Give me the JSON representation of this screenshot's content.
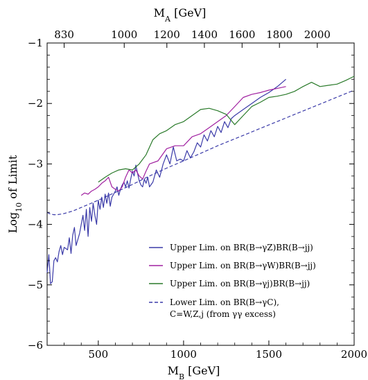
{
  "chart_data": {
    "type": "line",
    "xlabel": "M",
    "xlabel_sub": "B",
    "xlabel_unit": " [GeV]",
    "ylabel": "Log",
    "ylabel_sub": "10",
    "ylabel_rest": " of Limit",
    "top_xlabel": "M",
    "top_xlabel_sub": "A",
    "top_xlabel_unit": " [GeV]",
    "xlim": [
      200,
      2000
    ],
    "ylim": [
      -6,
      -1
    ],
    "x_ticks": [
      500,
      1000,
      1500,
      2000
    ],
    "x_tick_labels": [
      "500",
      "1000",
      "1500",
      "2000"
    ],
    "y_ticks": [
      -6,
      -5,
      -4,
      -3,
      -2,
      -1
    ],
    "y_tick_labels": [
      "−6",
      "−5",
      "−4",
      "−3",
      "−2",
      "−1"
    ],
    "top_ticks": [
      {
        "pos": 300,
        "label": "830"
      },
      {
        "pos": 652,
        "label": "1000"
      },
      {
        "pos": 902,
        "label": "1200"
      },
      {
        "pos": 1122,
        "label": "1400"
      },
      {
        "pos": 1343,
        "label": "1600"
      },
      {
        "pos": 1562,
        "label": "1800"
      },
      {
        "pos": 1784,
        "label": "2000"
      }
    ],
    "grid": false,
    "legend_position": "bottom-right",
    "series": [
      {
        "name": "Upper Lim. on BR(B→γZ)BR(B→jj)",
        "color": "#3a3aa8",
        "dash": false,
        "x": [
          200,
          210,
          220,
          230,
          240,
          250,
          260,
          270,
          280,
          290,
          300,
          310,
          320,
          330,
          340,
          350,
          360,
          370,
          380,
          390,
          400,
          410,
          420,
          430,
          440,
          450,
          460,
          470,
          480,
          490,
          500,
          510,
          520,
          530,
          540,
          550,
          560,
          570,
          580,
          590,
          600,
          610,
          620,
          630,
          640,
          650,
          660,
          670,
          680,
          690,
          700,
          710,
          720,
          730,
          740,
          750,
          760,
          770,
          780,
          790,
          800,
          820,
          840,
          860,
          880,
          900,
          920,
          940,
          960,
          980,
          1000,
          1020,
          1040,
          1060,
          1080,
          1100,
          1120,
          1140,
          1160,
          1180,
          1200,
          1220,
          1240,
          1260,
          1280,
          1300,
          1350,
          1400,
          1450,
          1500,
          1550,
          1600
        ],
        "y": [
          -4.8,
          -4.5,
          -4.98,
          -4.95,
          -4.6,
          -4.55,
          -4.62,
          -4.45,
          -4.35,
          -4.5,
          -4.38,
          -4.4,
          -4.42,
          -4.22,
          -4.48,
          -4.18,
          -4.05,
          -4.35,
          -4.25,
          -4.15,
          -4.0,
          -3.85,
          -4.1,
          -3.75,
          -4.2,
          -3.72,
          -3.95,
          -3.65,
          -3.85,
          -4.0,
          -3.6,
          -3.75,
          -3.55,
          -3.72,
          -3.5,
          -3.65,
          -3.48,
          -3.7,
          -3.55,
          -3.5,
          -3.45,
          -3.38,
          -3.52,
          -3.42,
          -3.35,
          -3.3,
          -3.38,
          -3.28,
          -3.4,
          -3.25,
          -3.12,
          -3.2,
          -3.02,
          -3.15,
          -3.28,
          -3.35,
          -3.38,
          -3.25,
          -3.32,
          -3.22,
          -3.38,
          -3.3,
          -3.1,
          -3.22,
          -3.0,
          -2.85,
          -3.0,
          -2.72,
          -2.95,
          -2.92,
          -2.95,
          -2.78,
          -2.9,
          -2.8,
          -2.65,
          -2.72,
          -2.52,
          -2.62,
          -2.45,
          -2.55,
          -2.38,
          -2.48,
          -2.3,
          -2.4,
          -2.25,
          -2.2,
          -2.1,
          -2.0,
          -1.9,
          -1.82,
          -1.72,
          -1.6
        ]
      },
      {
        "name": "Upper Lim. on BR(B→γW)BR(B→jj)",
        "color": "#a020a0",
        "dash": false,
        "x": [
          400,
          420,
          440,
          460,
          480,
          500,
          520,
          540,
          560,
          580,
          600,
          620,
          640,
          660,
          680,
          700,
          720,
          740,
          760,
          780,
          800,
          850,
          900,
          950,
          1000,
          1050,
          1100,
          1150,
          1200,
          1250,
          1300,
          1350,
          1400,
          1450,
          1500,
          1550,
          1600
        ],
        "y": [
          -3.52,
          -3.48,
          -3.5,
          -3.45,
          -3.42,
          -3.38,
          -3.32,
          -3.28,
          -3.22,
          -3.38,
          -3.42,
          -3.45,
          -3.38,
          -3.22,
          -3.1,
          -3.15,
          -3.1,
          -3.2,
          -3.25,
          -3.12,
          -3.0,
          -2.95,
          -2.75,
          -2.7,
          -2.7,
          -2.55,
          -2.5,
          -2.4,
          -2.3,
          -2.2,
          -2.05,
          -1.9,
          -1.85,
          -1.82,
          -1.78,
          -1.75,
          -1.72
        ]
      },
      {
        "name": "Upper Lim. on BR(B→γj)BR(B→jj)",
        "color": "#2a7a2a",
        "dash": false,
        "x": [
          500,
          540,
          580,
          620,
          660,
          700,
          740,
          780,
          820,
          860,
          900,
          950,
          1000,
          1050,
          1100,
          1150,
          1200,
          1250,
          1300,
          1350,
          1400,
          1450,
          1500,
          1550,
          1600,
          1650,
          1700,
          1750,
          1800,
          1850,
          1900,
          1950,
          2000
        ],
        "y": [
          -3.3,
          -3.22,
          -3.15,
          -3.1,
          -3.08,
          -3.1,
          -3.0,
          -2.85,
          -2.6,
          -2.5,
          -2.45,
          -2.35,
          -2.3,
          -2.2,
          -2.1,
          -2.08,
          -2.12,
          -2.18,
          -2.35,
          -2.2,
          -2.05,
          -1.98,
          -1.9,
          -1.88,
          -1.85,
          -1.8,
          -1.72,
          -1.65,
          -1.72,
          -1.7,
          -1.68,
          -1.62,
          -1.55
        ]
      },
      {
        "name": "Lower Lim. on BR(B→γC),",
        "name_line2": "C=W,Z,j (from γγ excess)",
        "color": "#3a3aa8",
        "dash": true,
        "x": [
          200,
          220,
          240,
          260,
          280,
          300,
          350,
          400,
          450,
          500,
          600,
          700,
          800,
          900,
          1000,
          1200,
          1400,
          1600,
          1800,
          2000
        ],
        "y": [
          -3.8,
          -3.83,
          -3.84,
          -3.84,
          -3.83,
          -3.82,
          -3.78,
          -3.72,
          -3.66,
          -3.6,
          -3.47,
          -3.34,
          -3.2,
          -3.07,
          -2.95,
          -2.7,
          -2.47,
          -2.24,
          -2.01,
          -1.78
        ]
      }
    ]
  }
}
